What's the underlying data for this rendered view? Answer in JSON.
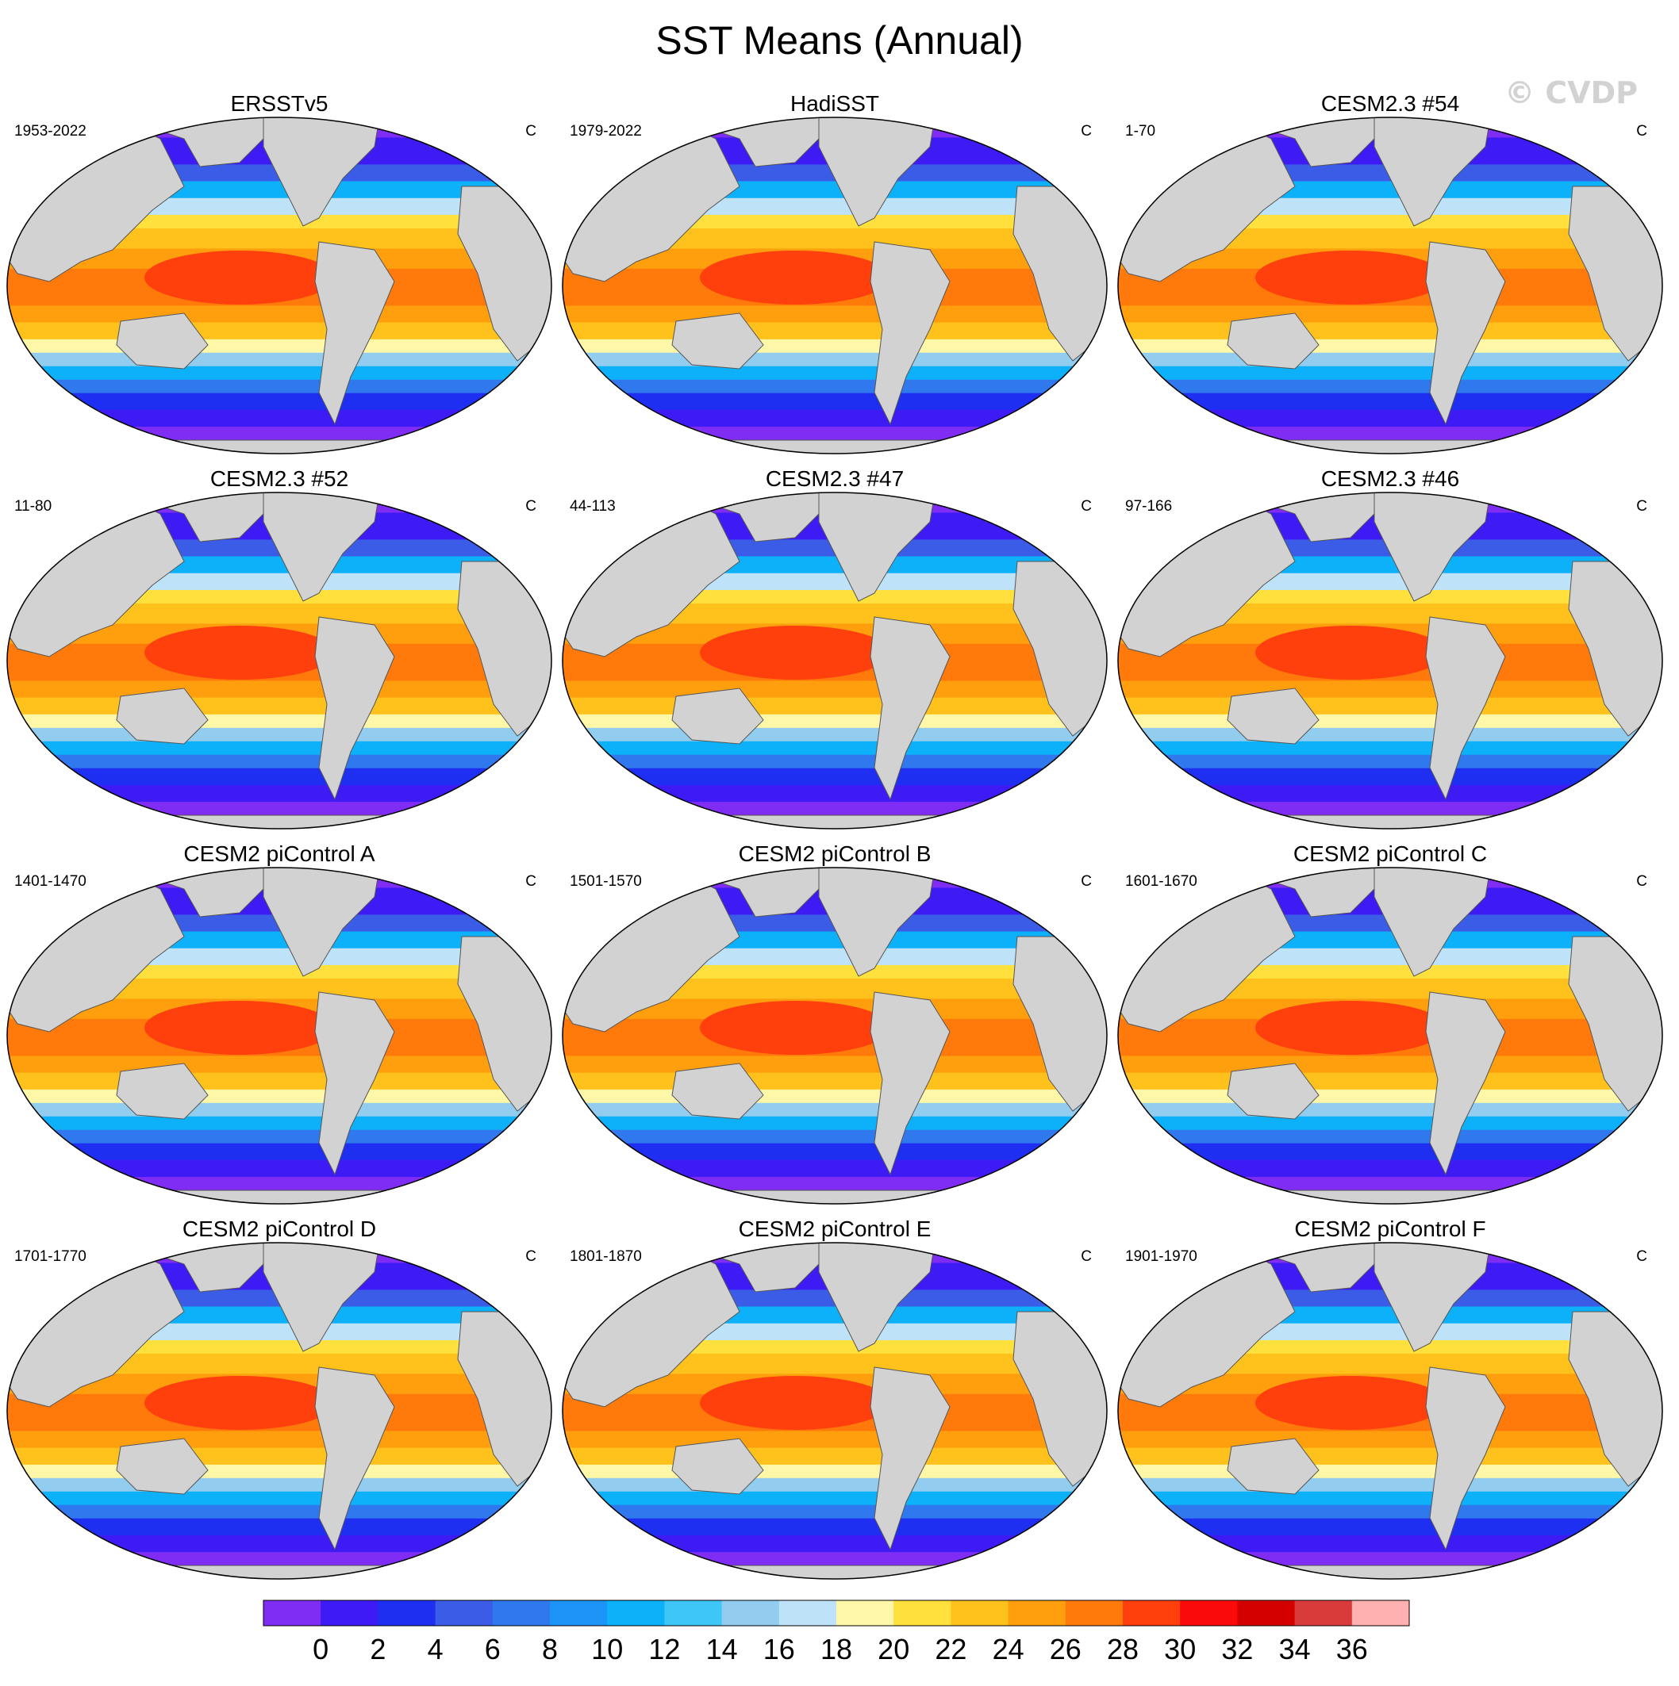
{
  "title": "SST Means (Annual)",
  "watermark": "© CVDP",
  "panels": [
    {
      "name": "ERSSTv5",
      "period": "1953-2022",
      "units": "C"
    },
    {
      "name": "HadiSST",
      "period": "1979-2022",
      "units": "C"
    },
    {
      "name": "CESM2.3 #54",
      "period": "1-70",
      "units": "C"
    },
    {
      "name": "CESM2.3 #52",
      "period": "11-80",
      "units": "C"
    },
    {
      "name": "CESM2.3 #47",
      "period": "44-113",
      "units": "C"
    },
    {
      "name": "CESM2.3 #46",
      "period": "97-166",
      "units": "C"
    },
    {
      "name": "CESM2 piControl A",
      "period": "1401-1470",
      "units": "C"
    },
    {
      "name": "CESM2 piControl B",
      "period": "1501-1570",
      "units": "C"
    },
    {
      "name": "CESM2 piControl C",
      "period": "1601-1670",
      "units": "C"
    },
    {
      "name": "CESM2 piControl D",
      "period": "1701-1770",
      "units": "C"
    },
    {
      "name": "CESM2 piControl E",
      "period": "1801-1870",
      "units": "C"
    },
    {
      "name": "CESM2 piControl F",
      "period": "1901-1970",
      "units": "C"
    }
  ],
  "colorbar": {
    "labels": [
      "0",
      "2",
      "4",
      "6",
      "8",
      "10",
      "12",
      "14",
      "16",
      "18",
      "20",
      "22",
      "24",
      "26",
      "28",
      "30",
      "32",
      "34",
      "36"
    ],
    "colors": [
      "#7f2cf5",
      "#3e1af5",
      "#1f2ff2",
      "#3a5ce6",
      "#2f78ee",
      "#1c93f7",
      "#0db1fa",
      "#3ec6f8",
      "#92cdf0",
      "#bee2f8",
      "#fff7a8",
      "#ffe03c",
      "#ffc21c",
      "#ff9f0e",
      "#ff7a0a",
      "#ff3f0c",
      "#fb0a0a",
      "#d40000",
      "#d93b3b",
      "#ffb1b1"
    ],
    "land_color": "#d2d2d2"
  }
}
